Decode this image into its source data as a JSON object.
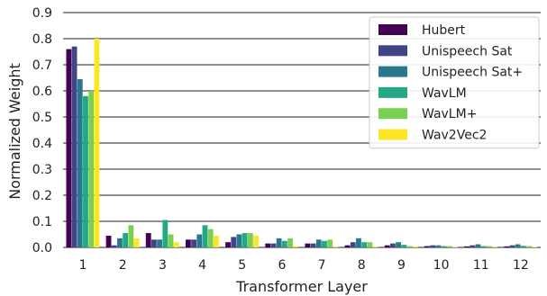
{
  "chart_data": {
    "type": "bar",
    "xlabel": "Transformer Layer",
    "ylabel": "Normalized Weight",
    "ylim": [
      0,
      0.9
    ],
    "yticks": [
      "0.0",
      "0.1",
      "0.2",
      "0.3",
      "0.4",
      "0.5",
      "0.6",
      "0.7",
      "0.8",
      "0.9"
    ],
    "grid": "horizontal",
    "legend": "top-right",
    "categories": [
      "1",
      "2",
      "3",
      "4",
      "5",
      "6",
      "7",
      "8",
      "9",
      "10",
      "11",
      "12"
    ],
    "series": [
      {
        "name": "Hubert",
        "color": "#440154",
        "values": [
          0.76,
          0.045,
          0.055,
          0.03,
          0.02,
          0.015,
          0.015,
          0.008,
          0.008,
          0.005,
          0.004,
          0.004
        ]
      },
      {
        "name": "Unispeech Sat",
        "color": "#414487",
        "values": [
          0.77,
          0.008,
          0.03,
          0.03,
          0.04,
          0.015,
          0.015,
          0.02,
          0.015,
          0.008,
          0.008,
          0.008
        ]
      },
      {
        "name": "Unispeech Sat+",
        "color": "#2a788e",
        "values": [
          0.645,
          0.035,
          0.03,
          0.05,
          0.05,
          0.035,
          0.03,
          0.035,
          0.02,
          0.008,
          0.012,
          0.012
        ]
      },
      {
        "name": "WavLM",
        "color": "#22a884",
        "values": [
          0.58,
          0.055,
          0.105,
          0.085,
          0.055,
          0.025,
          0.025,
          0.02,
          0.01,
          0.005,
          0.005,
          0.006
        ]
      },
      {
        "name": "WavLM+",
        "color": "#7ad151",
        "values": [
          0.6,
          0.085,
          0.05,
          0.07,
          0.055,
          0.035,
          0.03,
          0.02,
          0.005,
          0.005,
          0.005,
          0.005
        ]
      },
      {
        "name": "Wav2Vec2",
        "color": "#fde725",
        "values": [
          0.8,
          0.035,
          0.02,
          0.045,
          0.045,
          0.005,
          0.003,
          0.003,
          0.003,
          0.002,
          0.003,
          0.002
        ]
      }
    ]
  }
}
